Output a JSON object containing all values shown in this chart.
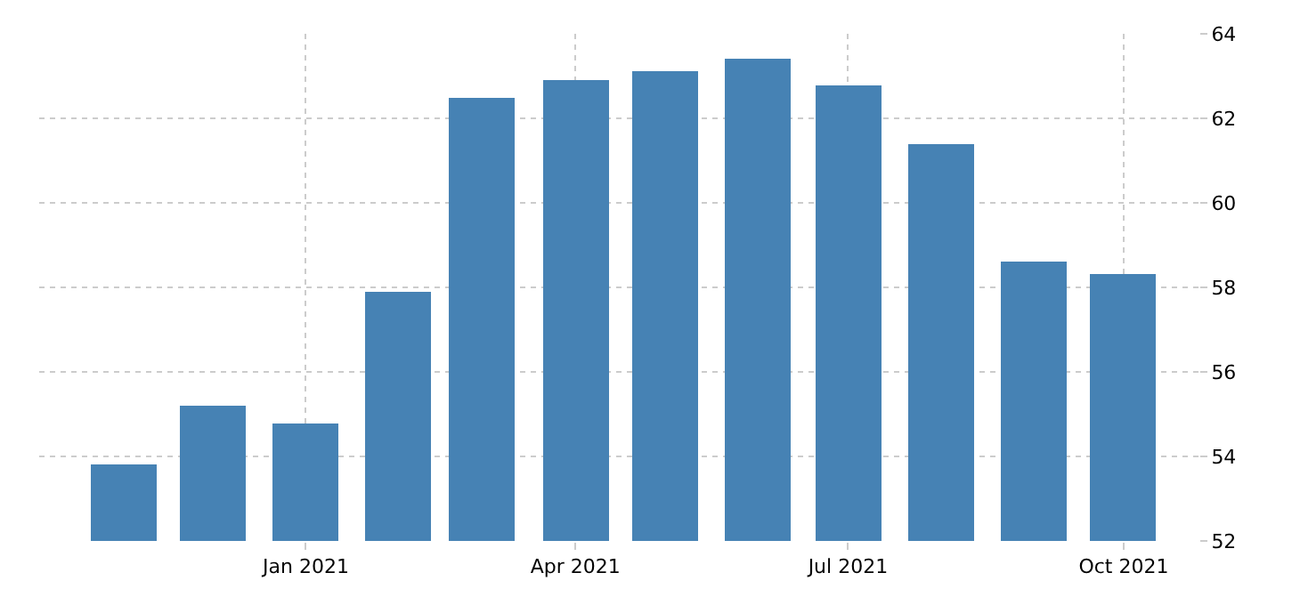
{
  "chart_data": {
    "type": "bar",
    "x": [
      "2020-11",
      "2020-12",
      "2021-01",
      "2021-02",
      "2021-03",
      "2021-04",
      "2021-05",
      "2021-06",
      "2021-07",
      "2021-08",
      "2021-09",
      "2021-10"
    ],
    "values": [
      53.8,
      55.2,
      54.8,
      57.9,
      62.5,
      62.9,
      63.1,
      63.4,
      62.8,
      61.4,
      58.6,
      58.3
    ],
    "color": "#4682b4",
    "xlim": [
      "2020-10-04",
      "2021-10-26"
    ],
    "xticks": [
      {
        "value": "2021-01",
        "label": "Jan 2021"
      },
      {
        "value": "2021-04",
        "label": "Apr 2021"
      },
      {
        "value": "2021-07",
        "label": "Jul 2021"
      },
      {
        "value": "2021-10",
        "label": "Oct 2021"
      }
    ],
    "ylim": [
      52,
      64
    ],
    "yticks": [
      52,
      54,
      56,
      58,
      60,
      62,
      64
    ],
    "grid": true
  }
}
